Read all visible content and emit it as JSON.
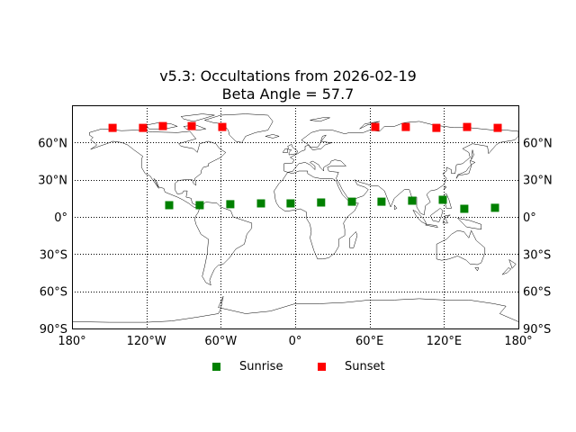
{
  "title": {
    "line1": "v5.3: Occultations from 2026-02-19",
    "line2": "Beta Angle = 57.7"
  },
  "legend": {
    "items": [
      {
        "label": "Sunrise",
        "color": "#008000"
      },
      {
        "label": "Sunset",
        "color": "#ff0000"
      }
    ]
  },
  "chart_data": {
    "type": "scatter",
    "title": "v5.3: Occultations from 2026-02-19\nBeta Angle = 57.7",
    "xlabel": "",
    "ylabel": "",
    "projection": "cylindrical (world map with coastlines)",
    "xlim": [
      -180,
      180
    ],
    "ylim": [
      -90,
      90
    ],
    "grid": true,
    "legend_position": "below plot, centered",
    "x_ticks": [
      "180°",
      "120°W",
      "60°W",
      "0°",
      "60°E",
      "120°E",
      "180°"
    ],
    "x_tick_values": [
      -180,
      -120,
      -60,
      0,
      60,
      120,
      180
    ],
    "y_ticks_left": [
      "60°N",
      "30°N",
      "0°",
      "30°S",
      "60°S",
      "90°S"
    ],
    "y_ticks_right": [
      "60°N",
      "30°N",
      "0°",
      "30°S",
      "60°S",
      "90°S"
    ],
    "y_tick_values": [
      60,
      30,
      0,
      -30,
      -60,
      -90
    ],
    "series": [
      {
        "name": "Sunrise",
        "color": "#008000",
        "marker": "square",
        "points": [
          {
            "lon": -101.6,
            "lat": 9.4
          },
          {
            "lon": -77.0,
            "lat": 9.4
          },
          {
            "lon": -52.3,
            "lat": 10.2
          },
          {
            "lon": -27.6,
            "lat": 10.9
          },
          {
            "lon": -3.7,
            "lat": 10.9
          },
          {
            "lon": 20.9,
            "lat": 11.6
          },
          {
            "lon": 45.7,
            "lat": 12.3
          },
          {
            "lon": 69.6,
            "lat": 12.3
          },
          {
            "lon": 94.3,
            "lat": 13.1
          },
          {
            "lon": 119.0,
            "lat": 13.8
          },
          {
            "lon": 136.4,
            "lat": 6.5
          },
          {
            "lon": 161.1,
            "lat": 7.3
          }
        ]
      },
      {
        "name": "Sunset",
        "color": "#ff0000",
        "marker": "square",
        "points": [
          {
            "lon": -147.3,
            "lat": 71.8
          },
          {
            "lon": -122.7,
            "lat": 71.8
          },
          {
            "lon": -106.7,
            "lat": 73.2
          },
          {
            "lon": -83.5,
            "lat": 73.2
          },
          {
            "lon": -58.8,
            "lat": 72.5
          },
          {
            "lon": 64.6,
            "lat": 72.5
          },
          {
            "lon": 89.2,
            "lat": 72.5
          },
          {
            "lon": 113.9,
            "lat": 71.8
          },
          {
            "lon": 138.6,
            "lat": 72.5
          },
          {
            "lon": 163.3,
            "lat": 71.8
          }
        ]
      }
    ]
  }
}
